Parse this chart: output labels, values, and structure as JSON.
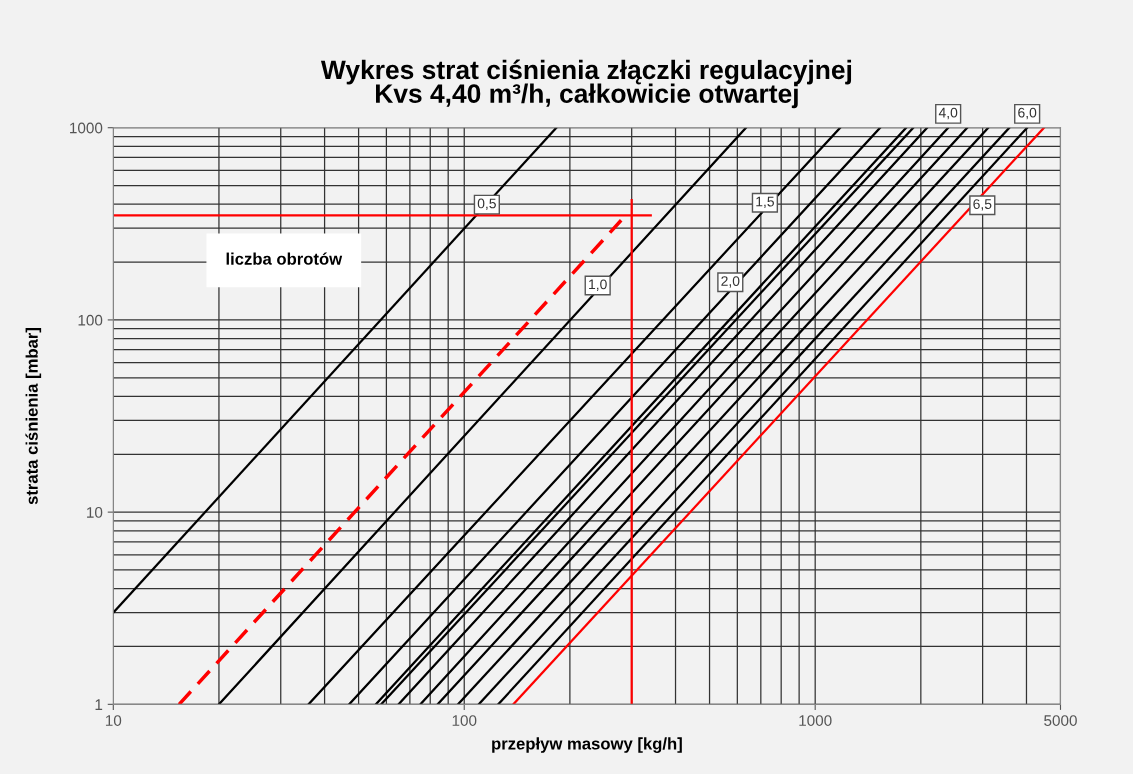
{
  "chart_data": {
    "type": "line",
    "title": "Wykres strat ciśnienia złączki regulacyjnej\nKvs 4,40 m³/h, całkowicie otwartej",
    "xlabel": "przepływ masowy [kg/h]",
    "ylabel": "strata ciśnienia [mbar]",
    "log": "xy",
    "xlim": [
      10,
      5000
    ],
    "ylim": [
      1,
      1000
    ],
    "xticks": [
      10,
      100,
      1000,
      5000
    ],
    "yticks": [
      1,
      10,
      100,
      1000
    ],
    "grid": true,
    "marker": "none",
    "line_style": "solid",
    "series": [
      {
        "color": "#000000",
        "x": [
          10,
          183
        ],
        "values": [
          3,
          1000
        ]
      },
      {
        "color": "#ff0000",
        "x": [
          15.4,
          280
        ],
        "values": [
          1,
          330
        ],
        "line_style": "dashed"
      },
      {
        "color": "#000000",
        "x": [
          20,
          635
        ],
        "values": [
          1,
          1000
        ]
      },
      {
        "color": "#000000",
        "x": [
          36,
          1178
        ],
        "values": [
          1,
          1000
        ]
      },
      {
        "color": "#000000",
        "x": [
          47,
          1531
        ],
        "values": [
          1,
          1000
        ]
      },
      {
        "color": "#000000",
        "x": [
          56,
          1816
        ],
        "values": [
          1,
          1000
        ]
      },
      {
        "color": "#000000",
        "x": [
          58,
          1903
        ],
        "values": [
          1,
          1000
        ]
      },
      {
        "color": "#000000",
        "x": [
          65,
          2084
        ],
        "values": [
          1,
          1000
        ]
      },
      {
        "color": "#000000",
        "x": [
          75,
          2393
        ],
        "values": [
          1,
          1000
        ]
      },
      {
        "color": "#000000",
        "x": [
          84,
          2711
        ],
        "values": [
          1,
          1000
        ]
      },
      {
        "color": "#000000",
        "x": [
          96,
          3112
        ],
        "values": [
          1,
          1000
        ]
      },
      {
        "color": "#000000",
        "x": [
          110,
          3574
        ],
        "values": [
          1,
          1000
        ]
      },
      {
        "color": "#000000",
        "x": [
          125,
          4018
        ],
        "values": [
          1,
          1000
        ]
      },
      {
        "color": "#ff0000",
        "x": [
          138,
          4487
        ],
        "values": [
          1,
          1000
        ]
      },
      {
        "color": "#ff0000",
        "x": [
          10,
          340
        ],
        "values": [
          350,
          350
        ]
      },
      {
        "color": "#ff0000",
        "x": [
          300,
          300
        ],
        "values": [
          1,
          420
        ]
      }
    ],
    "annotations": [
      {
        "text": "0,5",
        "x": 116,
        "y": 398
      },
      {
        "text": "1,0",
        "x": 240,
        "y": 151
      },
      {
        "text": "1,5",
        "x": 719,
        "y": 407
      },
      {
        "text": "2,0",
        "x": 573,
        "y": 157
      },
      {
        "text": "4,0",
        "x": 2393,
        "y": 1000
      },
      {
        "text": "6,0",
        "x": 4018,
        "y": 1000
      },
      {
        "text": "6,5",
        "x": 2994,
        "y": 395
      },
      "liczba obrotów"
    ]
  }
}
